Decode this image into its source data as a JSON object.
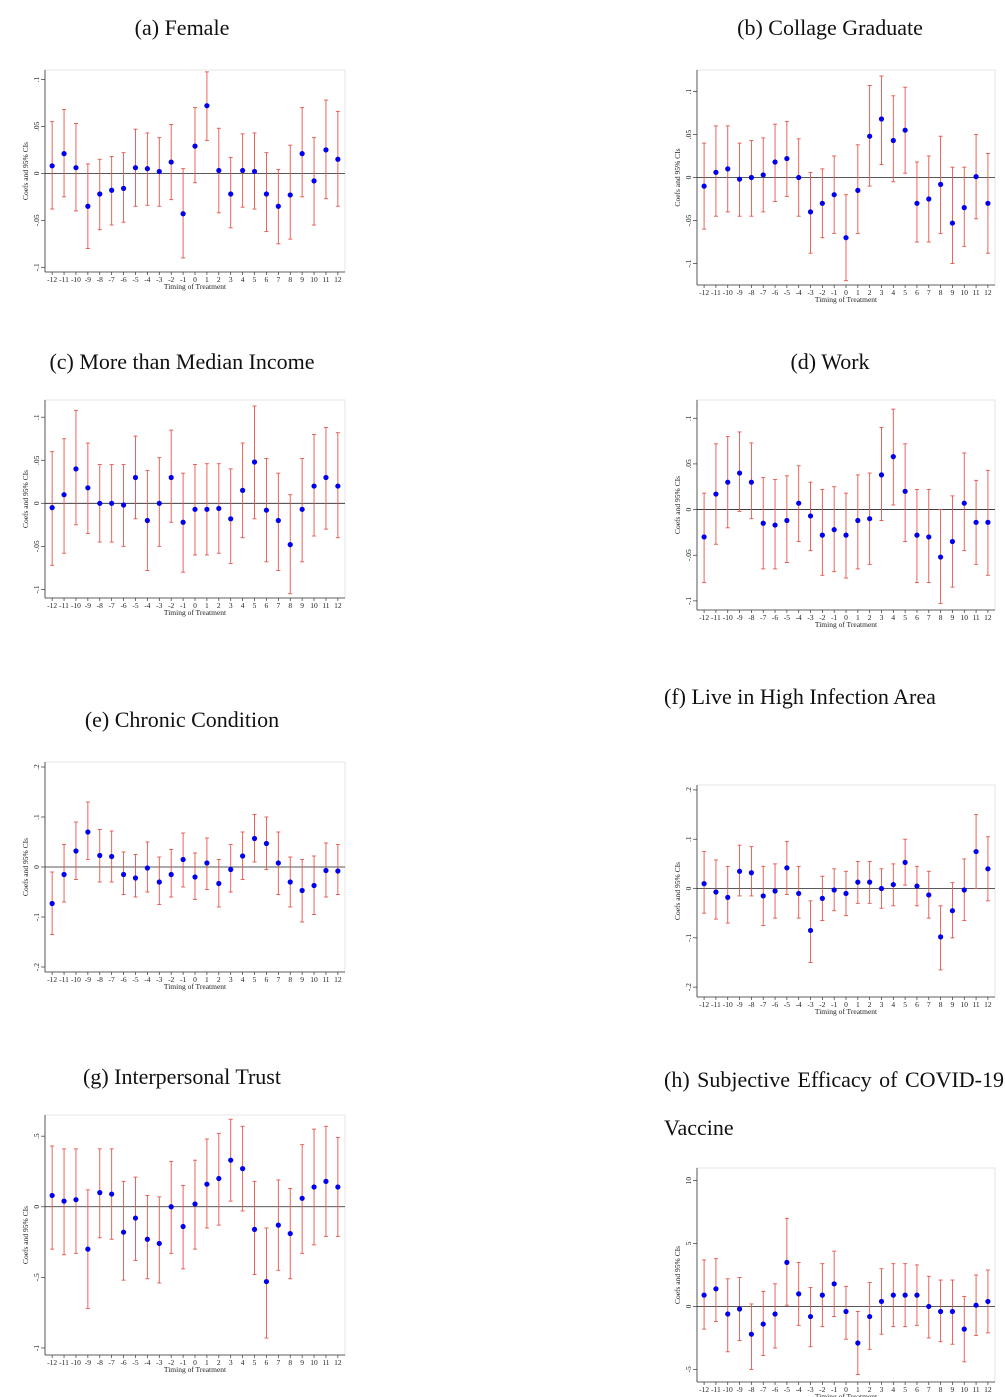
{
  "chart_data": [
    {
      "type": "errorbar",
      "title": "(a) Female",
      "xlabel": "Timing of Treatment",
      "ylabel": "Coefs and 95% CIs",
      "color": "#0000ee",
      "error_color": "#e5544c",
      "x": [
        -12,
        -11,
        -10,
        -9,
        -8,
        -7,
        -6,
        -5,
        -4,
        -3,
        -2,
        -1,
        0,
        1,
        2,
        3,
        4,
        5,
        6,
        7,
        8,
        9,
        10,
        11,
        12
      ],
      "xlim": [
        -12.6,
        12.6
      ],
      "xticks": [
        -12,
        -11,
        -10,
        -9,
        -8,
        -7,
        -6,
        -5,
        -4,
        -3,
        -2,
        -1,
        0,
        1,
        2,
        3,
        4,
        5,
        6,
        7,
        8,
        9,
        10,
        11,
        12
      ],
      "ylim": [
        -0.105,
        0.11
      ],
      "yticks": [
        {
          "value": 0.1,
          "label": ".1"
        },
        {
          "value": 0.05,
          "label": ".05"
        },
        0,
        {
          "value": -0.05,
          "label": "-.05"
        },
        {
          "value": -0.1,
          "label": "-.1"
        }
      ],
      "values": [
        0.008,
        0.021,
        0.006,
        -0.035,
        -0.022,
        -0.018,
        -0.016,
        0.006,
        0.005,
        0.002,
        0.012,
        -0.043,
        0.029,
        0.072,
        0.003,
        -0.022,
        0.003,
        0.002,
        -0.022,
        -0.035,
        -0.023,
        0.021,
        -0.008,
        0.025,
        0.015
      ],
      "upper": [
        0.055,
        0.068,
        0.053,
        0.01,
        0.015,
        0.018,
        0.022,
        0.047,
        0.043,
        0.038,
        0.052,
        0.005,
        0.07,
        0.108,
        0.048,
        0.017,
        0.042,
        0.043,
        0.022,
        0.004,
        0.03,
        0.07,
        0.038,
        0.078,
        0.066
      ],
      "lower": [
        -0.038,
        -0.025,
        -0.04,
        -0.08,
        -0.06,
        -0.055,
        -0.052,
        -0.035,
        -0.034,
        -0.035,
        -0.028,
        -0.09,
        -0.01,
        0.035,
        -0.042,
        -0.058,
        -0.036,
        -0.038,
        -0.062,
        -0.075,
        -0.07,
        -0.025,
        -0.055,
        -0.027,
        -0.035
      ]
    },
    {
      "type": "errorbar",
      "title": "(b) Collage Graduate",
      "xlabel": "Timing of Treatment",
      "ylabel": "Coefs and 95% CIs",
      "color": "#0000ee",
      "error_color": "#e5544c",
      "x": [
        -12,
        -11,
        -10,
        -9,
        -8,
        -7,
        -6,
        -5,
        -4,
        -3,
        -2,
        -1,
        0,
        1,
        2,
        3,
        4,
        5,
        6,
        7,
        8,
        9,
        10,
        11,
        12
      ],
      "xlim": [
        -12.6,
        12.6
      ],
      "xticks": [
        -12,
        -11,
        -10,
        -9,
        -8,
        -7,
        -6,
        -5,
        -4,
        -3,
        -2,
        -1,
        0,
        1,
        2,
        3,
        4,
        5,
        6,
        7,
        8,
        9,
        10,
        11,
        12
      ],
      "ylim": [
        -0.125,
        0.125
      ],
      "yticks": [
        {
          "value": 0.1,
          "label": ".1"
        },
        {
          "value": 0.05,
          "label": ".05"
        },
        0,
        {
          "value": -0.05,
          "label": "-.05"
        },
        {
          "value": -0.1,
          "label": "-.1"
        }
      ],
      "values": [
        -0.01,
        0.006,
        0.01,
        -0.002,
        0,
        0.003,
        0.018,
        0.022,
        0,
        -0.04,
        -0.03,
        -0.02,
        -0.07,
        -0.015,
        0.048,
        0.068,
        0.043,
        0.055,
        -0.03,
        -0.025,
        -0.008,
        -0.053,
        -0.035,
        0.001,
        -0.03
      ],
      "upper": [
        0.04,
        0.06,
        0.06,
        0.04,
        0.043,
        0.046,
        0.062,
        0.065,
        0.045,
        0.006,
        0.01,
        0.025,
        -0.02,
        0.038,
        0.107,
        0.118,
        0.095,
        0.105,
        0.018,
        0.025,
        0.048,
        0.012,
        0.012,
        0.05,
        0.028
      ],
      "lower": [
        -0.06,
        -0.045,
        -0.04,
        -0.045,
        -0.045,
        -0.04,
        -0.028,
        -0.022,
        -0.045,
        -0.088,
        -0.07,
        -0.065,
        -0.12,
        -0.065,
        -0.01,
        0.015,
        -0.005,
        0.005,
        -0.075,
        -0.075,
        -0.065,
        -0.1,
        -0.08,
        -0.048,
        -0.088
      ]
    },
    {
      "type": "errorbar",
      "title": "(c) More than Median Income",
      "xlabel": "Timing of Treatment",
      "ylabel": "Coefs and 95% CIs",
      "color": "#0000ee",
      "error_color": "#e5544c",
      "x": [
        -12,
        -11,
        -10,
        -9,
        -8,
        -7,
        -6,
        -5,
        -4,
        -3,
        -2,
        -1,
        0,
        1,
        2,
        3,
        4,
        5,
        6,
        7,
        8,
        9,
        10,
        11,
        12
      ],
      "xlim": [
        -12.6,
        12.6
      ],
      "xticks": [
        -12,
        -11,
        -10,
        -9,
        -8,
        -7,
        -6,
        -5,
        -4,
        -3,
        -2,
        -1,
        0,
        1,
        2,
        3,
        4,
        5,
        6,
        7,
        8,
        9,
        10,
        11,
        12
      ],
      "ylim": [
        -0.11,
        0.12
      ],
      "yticks": [
        {
          "value": 0.1,
          "label": ".1"
        },
        {
          "value": 0.05,
          "label": ".05"
        },
        0,
        {
          "value": -0.05,
          "label": "-.05"
        },
        {
          "value": -0.1,
          "label": "-.1"
        }
      ],
      "values": [
        -0.005,
        0.01,
        0.04,
        0.018,
        0,
        0,
        -0.002,
        0.03,
        -0.02,
        0,
        0.03,
        -0.022,
        -0.007,
        -0.007,
        -0.006,
        -0.018,
        0.015,
        0.048,
        -0.008,
        -0.02,
        -0.048,
        -0.007,
        0.02,
        0.03,
        0.02
      ],
      "upper": [
        0.06,
        0.075,
        0.108,
        0.07,
        0.045,
        0.045,
        0.045,
        0.078,
        0.038,
        0.053,
        0.085,
        0.035,
        0.045,
        0.046,
        0.046,
        0.04,
        0.07,
        0.113,
        0.052,
        0.035,
        0.01,
        0.052,
        0.08,
        0.088,
        0.082
      ],
      "lower": [
        -0.072,
        -0.058,
        -0.025,
        -0.035,
        -0.045,
        -0.045,
        -0.05,
        -0.018,
        -0.078,
        -0.05,
        -0.022,
        -0.08,
        -0.06,
        -0.06,
        -0.058,
        -0.07,
        -0.04,
        -0.018,
        -0.068,
        -0.078,
        -0.105,
        -0.068,
        -0.038,
        -0.03,
        -0.04
      ]
    },
    {
      "type": "errorbar",
      "title": "(d) Work",
      "xlabel": "Timing of Treatment",
      "ylabel": "Coefs and 95% CIs",
      "color": "#0000ee",
      "error_color": "#e5544c",
      "x": [
        -12,
        -11,
        -10,
        -9,
        -8,
        -7,
        -6,
        -5,
        -4,
        -3,
        -2,
        -1,
        0,
        1,
        2,
        3,
        4,
        5,
        6,
        7,
        8,
        9,
        10,
        11,
        12
      ],
      "xlim": [
        -12.6,
        12.6
      ],
      "xticks": [
        -12,
        -11,
        -10,
        -9,
        -8,
        -7,
        -6,
        -5,
        -4,
        -3,
        -2,
        -1,
        0,
        1,
        2,
        3,
        4,
        5,
        6,
        7,
        8,
        9,
        10,
        11,
        12
      ],
      "ylim": [
        -0.11,
        0.12
      ],
      "yticks": [
        {
          "value": 0.1,
          "label": ".1"
        },
        {
          "value": 0.05,
          "label": ".05"
        },
        0,
        {
          "value": -0.05,
          "label": "-.05"
        },
        {
          "value": -0.1,
          "label": "-.1"
        }
      ],
      "values": [
        -0.03,
        0.017,
        0.03,
        0.04,
        0.03,
        -0.015,
        -0.017,
        -0.012,
        0.007,
        -0.007,
        -0.028,
        -0.022,
        -0.028,
        -0.012,
        -0.01,
        0.038,
        0.058,
        0.02,
        -0.028,
        -0.03,
        -0.052,
        -0.035,
        0.007,
        -0.014,
        -0.014
      ],
      "upper": [
        0.018,
        0.072,
        0.08,
        0.085,
        0.073,
        0.035,
        0.033,
        0.037,
        0.048,
        0.03,
        0.022,
        0.025,
        0.018,
        0.038,
        0.04,
        0.09,
        0.11,
        0.072,
        0.022,
        0.022,
        0,
        0.015,
        0.062,
        0.032,
        0.043
      ],
      "lower": [
        -0.08,
        -0.038,
        -0.02,
        -0.002,
        -0.01,
        -0.065,
        -0.065,
        -0.058,
        -0.035,
        -0.045,
        -0.072,
        -0.068,
        -0.075,
        -0.065,
        -0.06,
        -0.012,
        0.005,
        -0.035,
        -0.08,
        -0.08,
        -0.103,
        -0.085,
        -0.045,
        -0.06,
        -0.072
      ]
    },
    {
      "type": "errorbar",
      "title": "(e) Chronic Condition",
      "xlabel": "Timing of Treatment",
      "ylabel": "Coefs and 95% CIs",
      "color": "#0000ee",
      "error_color": "#e5544c",
      "x": [
        -12,
        -11,
        -10,
        -9,
        -8,
        -7,
        -6,
        -5,
        -4,
        -3,
        -2,
        -1,
        0,
        1,
        2,
        3,
        4,
        5,
        6,
        7,
        8,
        9,
        10,
        11,
        12
      ],
      "xlim": [
        -12.6,
        12.6
      ],
      "xticks": [
        -12,
        -11,
        -10,
        -9,
        -8,
        -7,
        -6,
        -5,
        -4,
        -3,
        -2,
        -1,
        0,
        1,
        2,
        3,
        4,
        5,
        6,
        7,
        8,
        9,
        10,
        11,
        12
      ],
      "ylim": [
        -0.21,
        0.21
      ],
      "yticks": [
        {
          "value": 0.2,
          "label": ".2"
        },
        {
          "value": 0.1,
          "label": ".1"
        },
        0,
        {
          "value": -0.1,
          "label": "-.1"
        },
        {
          "value": -0.2,
          "label": "-.2"
        }
      ],
      "values": [
        -0.073,
        -0.015,
        0.032,
        0.07,
        0.023,
        0.021,
        -0.015,
        -0.022,
        -0.002,
        -0.03,
        -0.015,
        0.015,
        -0.02,
        0.008,
        -0.033,
        -0.005,
        0.022,
        0.057,
        0.047,
        0.008,
        -0.03,
        -0.047,
        -0.037,
        -0.007,
        -0.008
      ],
      "upper": [
        -0.01,
        0.045,
        0.09,
        0.13,
        0.075,
        0.072,
        0.03,
        0.025,
        0.05,
        0.02,
        0.035,
        0.068,
        0.028,
        0.058,
        0.015,
        0.045,
        0.07,
        0.105,
        0.1,
        0.07,
        0.02,
        0.015,
        0.022,
        0.048,
        0.045
      ],
      "lower": [
        -0.135,
        -0.07,
        -0.025,
        0.015,
        -0.03,
        -0.03,
        -0.055,
        -0.06,
        -0.05,
        -0.075,
        -0.06,
        -0.04,
        -0.065,
        -0.045,
        -0.08,
        -0.05,
        -0.025,
        0.01,
        -0.005,
        -0.055,
        -0.08,
        -0.11,
        -0.095,
        -0.06,
        -0.055
      ]
    },
    {
      "type": "errorbar",
      "title": "(f) Live in High Infection Area",
      "xlabel": "Timing of Treatment",
      "ylabel": "Coefs and 95% CIs",
      "color": "#0000ee",
      "error_color": "#e5544c",
      "x": [
        -12,
        -11,
        -10,
        -9,
        -8,
        -7,
        -6,
        -5,
        -4,
        -3,
        -2,
        -1,
        0,
        1,
        2,
        3,
        4,
        5,
        6,
        7,
        8,
        9,
        10,
        11,
        12
      ],
      "xlim": [
        -12.6,
        12.6
      ],
      "xticks": [
        -12,
        -11,
        -10,
        -9,
        -8,
        -7,
        -6,
        -5,
        -4,
        -3,
        -2,
        -1,
        0,
        1,
        2,
        3,
        4,
        5,
        6,
        7,
        8,
        9,
        10,
        11,
        12
      ],
      "ylim": [
        -0.22,
        0.21
      ],
      "yticks": [
        {
          "value": 0.2,
          "label": ".2"
        },
        {
          "value": 0.1,
          "label": ".1"
        },
        0,
        {
          "value": -0.1,
          "label": "-.1"
        },
        {
          "value": -0.2,
          "label": "-.2"
        }
      ],
      "values": [
        0.01,
        -0.007,
        -0.018,
        0.035,
        0.032,
        -0.015,
        -0.005,
        0.042,
        -0.01,
        -0.085,
        -0.02,
        -0.003,
        -0.01,
        0.013,
        0.013,
        0,
        0.008,
        0.053,
        0.005,
        -0.013,
        -0.098,
        -0.045,
        -0.003,
        0.075,
        0.04
      ],
      "upper": [
        0.075,
        0.058,
        0.045,
        0.088,
        0.085,
        0.045,
        0.05,
        0.095,
        0.045,
        -0.025,
        0.025,
        0.04,
        0.035,
        0.055,
        0.055,
        0.04,
        0.05,
        0.1,
        0.045,
        0.035,
        -0.035,
        0.012,
        0.06,
        0.15,
        0.105
      ],
      "lower": [
        -0.05,
        -0.062,
        -0.07,
        -0.015,
        -0.015,
        -0.075,
        -0.06,
        -0.012,
        -0.06,
        -0.15,
        -0.065,
        -0.045,
        -0.055,
        -0.03,
        -0.03,
        -0.04,
        -0.035,
        0.007,
        -0.035,
        -0.06,
        -0.165,
        -0.1,
        -0.065,
        0,
        -0.025
      ]
    },
    {
      "type": "errorbar",
      "title": "(g) Interpersonal Trust",
      "xlabel": "Timing of Treatment",
      "ylabel": "Coefs and 95% CIs",
      "color": "#0000ee",
      "error_color": "#e5544c",
      "x": [
        -12,
        -11,
        -10,
        -9,
        -8,
        -7,
        -6,
        -5,
        -4,
        -3,
        -2,
        -1,
        0,
        1,
        2,
        3,
        4,
        5,
        6,
        7,
        8,
        9,
        10,
        11,
        12
      ],
      "xlim": [
        -12.6,
        12.6
      ],
      "xticks": [
        -12,
        -11,
        -10,
        -9,
        -8,
        -7,
        -6,
        -5,
        -4,
        -3,
        -2,
        -1,
        0,
        1,
        2,
        3,
        4,
        5,
        6,
        7,
        8,
        9,
        10,
        11,
        12
      ],
      "ylim": [
        -1.05,
        0.65
      ],
      "yticks": [
        {
          "value": 0.5,
          "label": ".5"
        },
        0,
        {
          "value": -0.5,
          "label": "-.5"
        },
        -1
      ],
      "values": [
        0.08,
        0.04,
        0.05,
        -0.3,
        0.1,
        0.09,
        -0.18,
        -0.08,
        -0.23,
        -0.26,
        0,
        -0.14,
        0.02,
        0.16,
        0.2,
        0.33,
        0.27,
        -0.16,
        -0.53,
        -0.13,
        -0.19,
        0.06,
        0.14,
        0.18,
        0.14
      ],
      "upper": [
        0.43,
        0.41,
        0.41,
        0.12,
        0.41,
        0.41,
        0.18,
        0.21,
        0.08,
        0.07,
        0.32,
        0.15,
        0.33,
        0.48,
        0.52,
        0.62,
        0.57,
        0.18,
        -0.15,
        0.19,
        0.13,
        0.44,
        0.55,
        0.57,
        0.49
      ],
      "lower": [
        -0.3,
        -0.34,
        -0.33,
        -0.72,
        -0.22,
        -0.23,
        -0.52,
        -0.38,
        -0.51,
        -0.54,
        -0.33,
        -0.44,
        -0.3,
        -0.15,
        -0.13,
        0.04,
        -0.03,
        -0.48,
        -0.93,
        -0.45,
        -0.51,
        -0.33,
        -0.27,
        -0.21,
        -0.21
      ]
    },
    {
      "type": "errorbar",
      "title": "(h) Subjective Efficacy of COVID-19 Vaccine",
      "xlabel": "Timing of Treatment",
      "ylabel": "Coefs and 95% CIs",
      "color": "#0000ee",
      "error_color": "#e5544c",
      "x": [
        -12,
        -11,
        -10,
        -9,
        -8,
        -7,
        -6,
        -5,
        -4,
        -3,
        -2,
        -1,
        0,
        1,
        2,
        3,
        4,
        5,
        6,
        7,
        8,
        9,
        10,
        11,
        12
      ],
      "xlim": [
        -12.6,
        12.6
      ],
      "xticks": [
        -12,
        -11,
        -10,
        -9,
        -8,
        -7,
        -6,
        -5,
        -4,
        -3,
        -2,
        -1,
        0,
        1,
        2,
        3,
        4,
        5,
        6,
        7,
        8,
        9,
        10,
        11,
        12
      ],
      "ylim": [
        -6,
        11
      ],
      "yticks": [
        10,
        5,
        0,
        -5
      ],
      "values": [
        0.9,
        1.4,
        -0.6,
        -0.2,
        -2.2,
        -1.4,
        -0.6,
        3.5,
        1,
        -0.8,
        0.9,
        1.8,
        -0.4,
        -2.9,
        -0.8,
        0.4,
        0.9,
        0.9,
        0.9,
        0,
        -0.4,
        -0.4,
        -1.8,
        0.1,
        0.4
      ],
      "upper": [
        3.7,
        3.8,
        2.2,
        2.3,
        0.2,
        1.2,
        1.8,
        7,
        3.5,
        1.5,
        3.4,
        4.4,
        1.6,
        -0.4,
        1.9,
        3,
        3.4,
        3.4,
        3.3,
        2.4,
        2.1,
        2.1,
        0.8,
        2.5,
        2.9
      ],
      "lower": [
        -1.8,
        -1.2,
        -3.6,
        -2.7,
        -5,
        -3.9,
        -3.3,
        0.1,
        -1.5,
        -3.2,
        -1.6,
        -0.8,
        -2.6,
        -5.4,
        -3.4,
        -2.2,
        -1.6,
        -1.6,
        -1.5,
        -2.5,
        -2.8,
        -3,
        -4.4,
        -2.3,
        -2.1
      ]
    }
  ]
}
